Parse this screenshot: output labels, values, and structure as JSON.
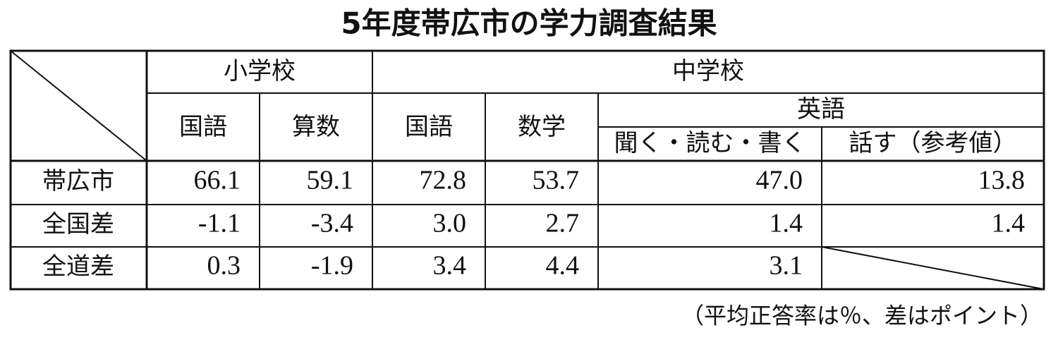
{
  "title": "5年度帯広市の学力調査結果",
  "table": {
    "header": {
      "elementary": "小学校",
      "junior": "中学校",
      "english": "英語",
      "columns": [
        "国語",
        "算数",
        "国語",
        "数学",
        "聞く・読む・書く",
        "話す（参考値）"
      ]
    },
    "rows": [
      {
        "label": "帯広市",
        "values": [
          "66.1",
          "59.1",
          "72.8",
          "53.7",
          "47.0",
          "13.8"
        ]
      },
      {
        "label": "全国差",
        "values": [
          "-1.1",
          "-3.4",
          "3.0",
          "2.7",
          "1.4",
          "1.4"
        ]
      },
      {
        "label": "全道差",
        "values": [
          "0.3",
          "-1.9",
          "3.4",
          "4.4",
          "3.1"
        ]
      }
    ]
  },
  "note": "（平均正答率は％、差はポイント）"
}
